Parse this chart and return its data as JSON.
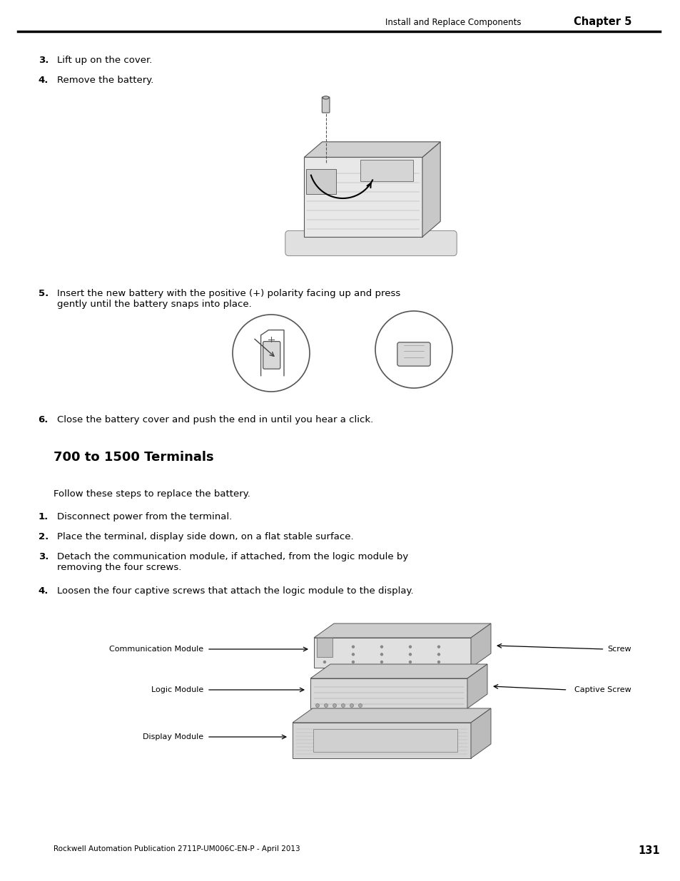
{
  "page_width": 9.54,
  "page_height": 12.35,
  "dpi": 100,
  "bg_color": "#ffffff",
  "header_text": "Install and Replace Components",
  "header_chapter": "Chapter 5",
  "footer_text": "Rockwell Automation Publication 2711P-UM006C-EN-P - April 2013",
  "footer_page": "131",
  "section_title": "700 to 1500 Terminals",
  "step3_text": "Lift up on the cover.",
  "step4_text": "Remove the battery.",
  "step5_text": "Insert the new battery with the positive (+) polarity facing up and press\ngently until the battery snaps into place.",
  "step6_text": "Close the battery cover and push the end in until you hear a click.",
  "section_intro": "Follow these steps to replace the battery.",
  "sec_step1": "Disconnect power from the terminal.",
  "sec_step2": "Place the terminal, display side down, on a flat stable surface.",
  "sec_step3": "Detach the communication module, if attached, from the logic module by\nremoving the four screws.",
  "sec_step4": "Loosen the four captive screws that attach the logic module to the display.",
  "label_comm": "Communication Module",
  "label_logic": "Logic Module",
  "label_display": "Display Module",
  "label_screw": "Screw",
  "label_captive": "Captive Screw",
  "body_fontsize": 9.5,
  "small_fontsize": 8.0,
  "title_fontsize": 13,
  "header_fontsize": 8.5
}
